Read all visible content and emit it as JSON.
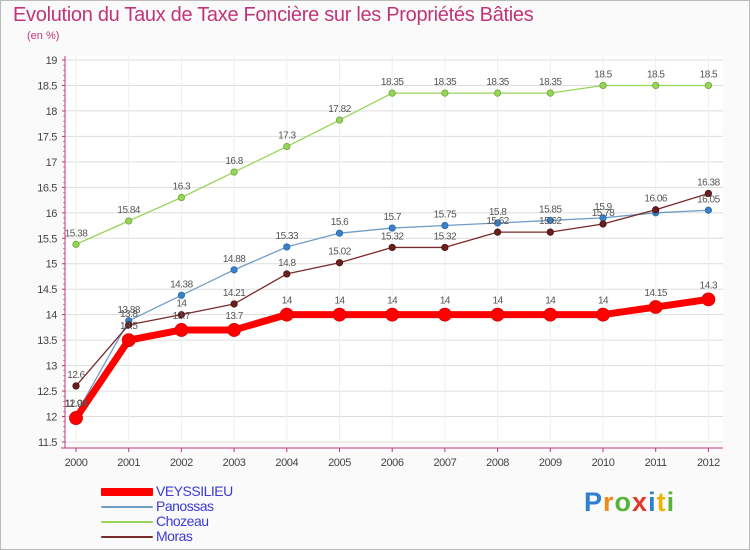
{
  "header": {
    "title": "Evolution du Taux de Taxe Foncière sur les Propriétés Bâties",
    "unit": "(en %)"
  },
  "colors": {
    "title": "#c0357a",
    "axis": "#c0357a",
    "grid": "#dddddd",
    "plot_bg": "#ffffff"
  },
  "brand": {
    "letters": [
      "P",
      "r",
      "o",
      "x",
      "i",
      "t",
      "i"
    ],
    "colors": [
      "#2f7fd0",
      "#f08a1c",
      "#58b43a",
      "#e23a2a",
      "#2f7fd0",
      "#f0b400",
      "#58b43a"
    ]
  },
  "chart_data": {
    "type": "line",
    "title": "Evolution du Taux de Taxe Foncière sur les Propriétés Bâties",
    "ylabel": "(en %)",
    "xlabel": "",
    "x": [
      "2000",
      "2001",
      "2002",
      "2003",
      "2004",
      "2005",
      "2006",
      "2007",
      "2008",
      "2009",
      "2010",
      "2011",
      "2012"
    ],
    "ylim": [
      11.5,
      19
    ],
    "yticks": [
      "11.5",
      "12",
      "12.5",
      "13",
      "13.5",
      "14",
      "14.5",
      "15",
      "15.5",
      "16",
      "16.5",
      "17",
      "17.5",
      "18",
      "18.5",
      "19"
    ],
    "grid": true,
    "legend_position": "bottom-left",
    "series": [
      {
        "name": "VEYSSILIEU",
        "color": "#ff0000",
        "values": [
          11.97,
          13.5,
          13.7,
          13.7,
          14,
          14,
          14,
          14,
          14,
          14,
          14,
          14.15,
          14.3
        ],
        "labels": [
          "11.97",
          "13.5",
          "13.7",
          "13.7",
          "14",
          "14",
          "14",
          "14",
          "14",
          "14",
          "14",
          "14.15",
          "14.3"
        ]
      },
      {
        "name": "Panossas",
        "color": "#6f9dc8",
        "values": [
          12.04,
          13.88,
          14.38,
          14.88,
          15.33,
          15.6,
          15.7,
          15.75,
          15.8,
          15.85,
          15.9,
          16.0,
          16.05
        ],
        "labels": [
          "12.04",
          "13.88",
          "14.38",
          "14.88",
          "15.33",
          "15.6",
          "15.7",
          "15.75",
          "15.8",
          "15.85",
          "15.9",
          "",
          "16.05"
        ]
      },
      {
        "name": "Chozeau",
        "color": "#98d45a",
        "values": [
          15.38,
          15.84,
          16.3,
          16.8,
          17.3,
          17.82,
          18.35,
          18.35,
          18.35,
          18.35,
          18.5,
          18.5,
          18.5
        ],
        "labels": [
          "15.38",
          "15.84",
          "16.3",
          "16.8",
          "17.3",
          "17.82",
          "18.35",
          "18.35",
          "18.35",
          "18.35",
          "18.5",
          "18.5",
          "18.5"
        ]
      },
      {
        "name": "Moras",
        "color": "#7a2a2a",
        "values": [
          12.6,
          13.8,
          14.0,
          14.21,
          14.8,
          15.02,
          15.32,
          15.32,
          15.62,
          15.62,
          15.78,
          16.06,
          16.38
        ],
        "labels": [
          "12.6",
          "13.8",
          "14",
          "14.21",
          "14.8",
          "15.02",
          "15.32",
          "15.32",
          "15.62",
          "15.62",
          "15.78",
          "16.06",
          "16.38"
        ]
      }
    ]
  }
}
